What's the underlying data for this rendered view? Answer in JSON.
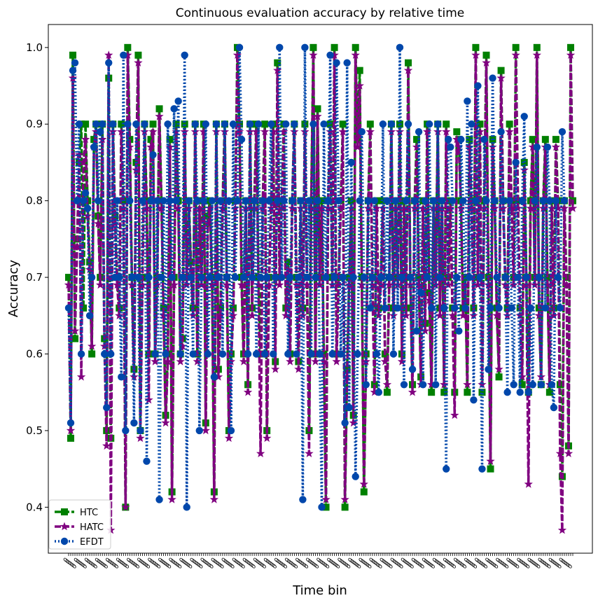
{
  "chart_data": {
    "type": "line",
    "title": "Continuous evaluation accuracy by relative time",
    "xlabel": "Time bin",
    "ylabel": "Accuracy",
    "ylim": [
      0.34,
      1.03
    ],
    "yticks": [
      "0.4",
      "0.5",
      "0.6",
      "0.7",
      "0.8",
      "0.9",
      "1.0"
    ],
    "x_count": 240,
    "x_tick_label_text": "0",
    "grid": false,
    "legend_position": "lower-left",
    "series": [
      {
        "name": "HTC",
        "color": "#008000",
        "linestyle": "dashed",
        "marker": "square",
        "values": [
          0.7,
          0.49,
          0.99,
          0.62,
          0.75,
          0.85,
          0.9,
          0.66,
          0.9,
          0.8,
          0.72,
          0.6,
          0.88,
          0.9,
          0.78,
          0.7,
          0.9,
          0.62,
          0.5,
          0.96,
          0.49,
          0.9,
          0.78,
          0.7,
          0.66,
          0.9,
          0.8,
          0.4,
          1.0,
          0.88,
          0.7,
          0.58,
          0.85,
          0.99,
          0.5,
          0.7,
          0.9,
          0.8,
          0.6,
          0.88,
          0.9,
          0.6,
          0.7,
          0.92,
          0.8,
          0.66,
          0.52,
          0.6,
          0.88,
          0.42,
          0.7,
          0.9,
          0.8,
          0.6,
          0.62,
          0.9,
          0.7,
          0.8,
          0.72,
          0.66,
          0.9,
          0.6,
          0.8,
          0.7,
          0.9,
          0.51,
          0.78,
          0.8,
          0.7,
          0.42,
          0.9,
          0.58,
          0.66,
          0.8,
          0.9,
          0.7,
          0.5,
          0.6,
          0.66,
          0.8,
          1.0,
          0.9,
          0.7,
          0.6,
          0.8,
          0.56,
          0.9,
          0.66,
          0.8,
          0.9,
          0.7,
          0.6,
          0.8,
          0.9,
          0.5,
          0.7,
          0.8,
          0.9,
          0.59,
          0.98,
          0.7,
          0.8,
          0.9,
          0.66,
          0.72,
          0.6,
          0.8,
          0.9,
          0.7,
          0.59,
          0.8,
          0.66,
          0.9,
          0.7,
          0.5,
          0.8,
          1.0,
          0.6,
          0.92,
          0.7,
          0.8,
          0.6,
          0.4,
          0.8,
          0.9,
          0.7,
          1.0,
          0.6,
          0.7,
          0.8,
          0.9,
          0.4,
          0.58,
          0.7,
          0.8,
          0.52,
          1.0,
          0.88,
          0.97,
          0.7,
          0.42,
          0.6,
          0.8,
          0.9,
          0.7,
          0.56,
          0.8,
          0.66,
          0.7,
          0.8,
          0.6,
          0.55,
          0.7,
          0.9,
          0.66,
          0.8,
          0.7,
          0.9,
          0.6,
          0.8,
          0.66,
          0.98,
          0.7,
          0.56,
          0.8,
          0.88,
          0.7,
          0.57,
          0.8,
          0.64,
          0.9,
          0.68,
          0.55,
          0.8,
          0.7,
          0.9,
          0.66,
          0.8,
          0.55,
          0.9,
          0.7,
          0.8,
          0.66,
          0.55,
          0.89,
          0.88,
          0.8,
          0.66,
          0.7,
          0.55,
          0.88,
          0.8,
          0.66,
          1.0,
          0.7,
          0.9,
          0.55,
          0.8,
          0.99,
          0.7,
          0.45,
          0.88,
          0.8,
          0.66,
          0.57,
          0.97,
          0.8,
          0.7,
          0.66,
          0.9,
          0.8,
          0.7,
          1.0,
          0.8,
          0.66,
          0.56,
          0.85,
          0.7,
          0.55,
          0.8,
          0.88,
          0.7,
          1.0,
          0.66,
          0.56,
          0.8,
          0.88,
          0.7,
          0.55,
          0.8,
          0.66,
          0.88,
          0.8,
          0.56,
          0.44,
          0.8,
          0.7,
          0.48,
          1.0,
          0.8
        ]
      },
      {
        "name": "HATC",
        "color": "#800080",
        "linestyle": "dashed",
        "marker": "star",
        "values": [
          0.69,
          0.5,
          0.96,
          0.63,
          0.74,
          0.86,
          0.57,
          0.85,
          0.88,
          0.78,
          0.71,
          0.61,
          0.87,
          0.89,
          0.77,
          0.69,
          0.88,
          0.61,
          0.48,
          0.99,
          0.37,
          0.89,
          0.77,
          0.69,
          0.65,
          0.89,
          0.79,
          0.4,
          0.99,
          0.87,
          0.69,
          0.57,
          0.84,
          0.98,
          0.49,
          0.69,
          0.89,
          0.79,
          0.54,
          0.87,
          0.89,
          0.59,
          0.69,
          0.91,
          0.79,
          0.65,
          0.51,
          0.59,
          0.87,
          0.41,
          0.69,
          0.89,
          0.79,
          0.59,
          0.61,
          0.89,
          0.69,
          0.79,
          0.71,
          0.65,
          0.89,
          0.59,
          0.79,
          0.69,
          0.89,
          0.5,
          0.77,
          0.79,
          0.69,
          0.41,
          0.89,
          0.57,
          0.65,
          0.79,
          0.89,
          0.69,
          0.49,
          0.59,
          0.65,
          0.79,
          0.99,
          0.89,
          0.69,
          0.59,
          0.79,
          0.55,
          0.89,
          0.65,
          0.79,
          0.89,
          0.69,
          0.47,
          0.79,
          0.89,
          0.49,
          0.69,
          0.79,
          0.89,
          0.58,
          0.97,
          0.69,
          0.79,
          0.89,
          0.65,
          0.71,
          0.59,
          0.79,
          0.89,
          0.69,
          0.58,
          0.79,
          0.65,
          0.89,
          0.69,
          0.47,
          0.79,
          0.99,
          0.59,
          0.91,
          0.69,
          0.79,
          0.59,
          0.41,
          0.79,
          0.89,
          0.69,
          0.99,
          0.59,
          0.69,
          0.79,
          0.89,
          0.41,
          0.57,
          0.69,
          0.79,
          0.51,
          0.99,
          0.87,
          0.95,
          0.69,
          0.43,
          0.59,
          0.79,
          0.89,
          0.69,
          0.55,
          0.79,
          0.65,
          0.69,
          0.79,
          0.59,
          0.56,
          0.69,
          0.89,
          0.65,
          0.79,
          0.69,
          0.89,
          0.59,
          0.79,
          0.65,
          0.97,
          0.69,
          0.55,
          0.79,
          0.87,
          0.69,
          0.56,
          0.79,
          0.63,
          0.89,
          0.67,
          0.56,
          0.79,
          0.69,
          0.89,
          0.65,
          0.79,
          0.56,
          0.89,
          0.69,
          0.79,
          0.65,
          0.52,
          0.88,
          0.87,
          0.79,
          0.65,
          0.69,
          0.56,
          0.87,
          0.79,
          0.65,
          0.99,
          0.69,
          0.89,
          0.56,
          0.79,
          0.98,
          0.69,
          0.46,
          0.87,
          0.79,
          0.65,
          0.58,
          0.96,
          0.79,
          0.69,
          0.65,
          0.89,
          0.79,
          0.69,
          0.99,
          0.79,
          0.65,
          0.57,
          0.84,
          0.69,
          0.43,
          0.79,
          0.87,
          0.69,
          0.99,
          0.65,
          0.57,
          0.79,
          0.87,
          0.69,
          0.56,
          0.79,
          0.65,
          0.87,
          0.79,
          0.47,
          0.37,
          0.79,
          0.69,
          0.47,
          0.99,
          0.79
        ]
      },
      {
        "name": "EFDT",
        "color": "#0047ab",
        "linestyle": "dotted",
        "marker": "circle",
        "values": [
          0.66,
          0.51,
          0.97,
          0.98,
          0.8,
          0.9,
          0.6,
          0.8,
          0.81,
          0.79,
          0.65,
          0.7,
          0.87,
          0.9,
          0.8,
          0.89,
          0.9,
          0.6,
          0.53,
          0.98,
          0.6,
          0.9,
          0.7,
          0.8,
          0.7,
          0.57,
          0.99,
          0.5,
          0.9,
          0.8,
          0.7,
          0.51,
          0.9,
          0.7,
          0.5,
          0.8,
          0.9,
          0.46,
          0.7,
          0.8,
          0.86,
          0.6,
          0.8,
          0.41,
          0.7,
          0.8,
          0.6,
          0.9,
          0.8,
          0.7,
          0.92,
          0.8,
          0.93,
          0.6,
          0.7,
          0.99,
          0.4,
          0.8,
          0.7,
          0.6,
          0.9,
          0.8,
          0.5,
          0.7,
          0.8,
          0.9,
          0.6,
          0.7,
          0.8,
          0.57,
          0.9,
          0.7,
          0.8,
          0.6,
          0.9,
          0.7,
          0.8,
          0.5,
          0.9,
          0.7,
          0.8,
          1.0,
          0.88,
          0.7,
          0.8,
          0.6,
          0.9,
          0.7,
          0.8,
          0.6,
          0.9,
          0.7,
          0.8,
          0.6,
          0.7,
          0.8,
          0.9,
          0.6,
          0.7,
          0.8,
          1.0,
          0.7,
          0.8,
          0.9,
          0.6,
          0.7,
          0.8,
          0.9,
          0.6,
          0.7,
          0.8,
          0.41,
          1.0,
          0.7,
          0.8,
          0.6,
          0.9,
          0.7,
          0.8,
          0.6,
          0.4,
          0.9,
          0.7,
          0.8,
          0.99,
          0.6,
          0.7,
          0.98,
          0.8,
          0.6,
          0.7,
          0.51,
          0.98,
          0.53,
          0.85,
          0.7,
          0.44,
          0.6,
          0.8,
          0.89,
          0.7,
          0.56,
          0.8,
          0.66,
          0.7,
          0.8,
          0.6,
          0.55,
          0.7,
          0.9,
          0.66,
          0.8,
          0.7,
          0.9,
          0.6,
          0.8,
          0.66,
          1.0,
          0.7,
          0.56,
          0.8,
          0.9,
          0.7,
          0.58,
          0.8,
          0.63,
          0.89,
          0.68,
          0.56,
          0.8,
          0.7,
          0.9,
          0.66,
          0.8,
          0.56,
          0.9,
          0.7,
          0.8,
          0.66,
          0.45,
          0.88,
          0.87,
          0.8,
          0.66,
          0.7,
          0.63,
          0.88,
          0.8,
          0.66,
          0.93,
          0.7,
          0.9,
          0.54,
          0.8,
          0.95,
          0.7,
          0.45,
          0.88,
          0.8,
          0.58,
          0.66,
          0.96,
          0.8,
          0.7,
          0.66,
          0.89,
          0.8,
          0.7,
          0.55,
          0.8,
          0.66,
          0.56,
          0.85,
          0.7,
          0.55,
          0.8,
          0.91,
          0.7,
          0.55,
          0.66,
          0.56,
          0.8,
          0.87,
          0.7,
          0.56,
          0.8,
          0.66,
          0.87,
          0.8,
          0.56,
          0.53,
          0.8,
          0.7,
          0.66,
          0.89,
          0.8
        ]
      }
    ]
  }
}
